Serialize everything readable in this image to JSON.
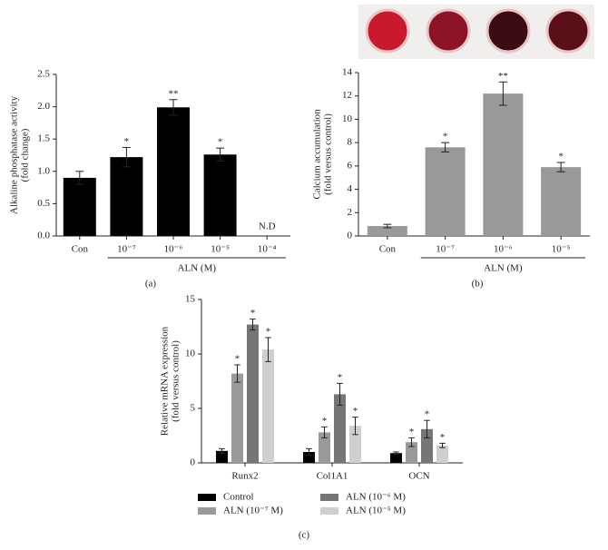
{
  "chart_data": [
    {
      "type": "bar",
      "panel": "(a)",
      "y_label": [
        "Alkaline phosphatase activity",
        "(fold change)"
      ],
      "categories": [
        "Con",
        "10⁻⁷",
        "10⁻⁶",
        "10⁻⁵",
        "10⁻⁴"
      ],
      "values": [
        0.9,
        1.22,
        1.99,
        1.26,
        null
      ],
      "errors": [
        0.1,
        0.15,
        0.12,
        0.1,
        null
      ],
      "annotations": [
        null,
        "*",
        "**",
        "*",
        "N.D"
      ],
      "group_label": "ALN (M)",
      "color": "#000000",
      "ylim": [
        0,
        2.5
      ],
      "yticks": [
        {
          "value": 0,
          "label": "0.0"
        },
        0.5,
        {
          "value": 1,
          "label": "1.0"
        },
        1.5,
        {
          "value": 2,
          "label": "2.0"
        },
        2.5
      ]
    },
    {
      "type": "bar",
      "panel": "(b)",
      "y_label": [
        "Calcium accumulation",
        "(fold versus control)"
      ],
      "categories": [
        "Con",
        "10⁻⁷",
        "10⁻⁶",
        "10⁻⁵"
      ],
      "values": [
        0.85,
        7.6,
        12.2,
        5.9
      ],
      "errors": [
        0.15,
        0.4,
        1.0,
        0.4
      ],
      "annotations": [
        null,
        "*",
        "**",
        "*"
      ],
      "group_label": "ALN (M)",
      "color": "#999999",
      "ylim": [
        0,
        14
      ],
      "yticks": [
        0,
        2,
        4,
        6,
        8,
        10,
        12,
        14
      ]
    },
    {
      "type": "bar",
      "panel": "(c)",
      "y_label": [
        "Relative mRNA expression",
        "(fold versus control)"
      ],
      "categories": [
        "Runx2",
        "Col1A1",
        "OCN"
      ],
      "series": [
        {
          "name": "Control",
          "color": "#000000",
          "values": [
            1.1,
            1.0,
            0.9
          ],
          "errors": [
            0.2,
            0.3,
            0.1
          ],
          "annotations": [
            null,
            null,
            null
          ]
        },
        {
          "name": "ALN (10⁻⁷ M)",
          "color": "#9a9a9a",
          "values": [
            8.2,
            2.8,
            1.9
          ],
          "errors": [
            0.8,
            0.5,
            0.4
          ],
          "annotations": [
            "*",
            "*",
            "*"
          ]
        },
        {
          "name": "ALN (10⁻⁶ M)",
          "color": "#767676",
          "values": [
            12.7,
            6.3,
            3.1
          ],
          "errors": [
            0.5,
            1.0,
            0.8
          ],
          "annotations": [
            "*",
            "*",
            "*"
          ]
        },
        {
          "name": "ALN (10⁻⁵ M)",
          "color": "#cfcfcf",
          "values": [
            10.4,
            3.4,
            1.6
          ],
          "errors": [
            1.1,
            0.8,
            0.2
          ],
          "annotations": [
            "*",
            "*",
            "*"
          ]
        }
      ],
      "ylim": [
        0,
        15
      ],
      "yticks": [
        0,
        5,
        10,
        15
      ]
    }
  ]
}
